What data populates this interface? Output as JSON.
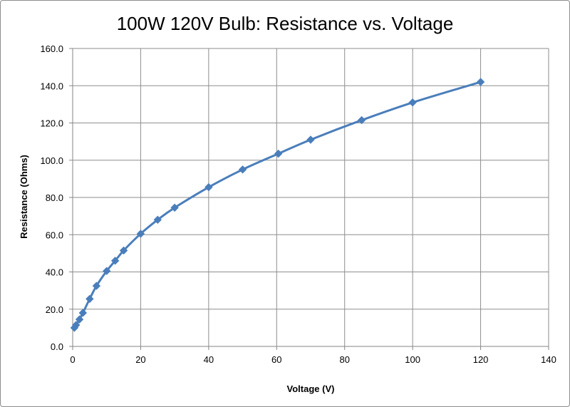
{
  "chart_data": {
    "type": "line",
    "title": "100W 120V Bulb: Resistance vs. Voltage",
    "xlabel": "Voltage (V)",
    "ylabel": "Resistance (Ohms)",
    "xlim": [
      0,
      140
    ],
    "ylim": [
      0,
      160
    ],
    "xticks": [
      0,
      20,
      40,
      60,
      80,
      100,
      120,
      140
    ],
    "xtick_labels": [
      "0",
      "20",
      "40",
      "60",
      "80",
      "100",
      "120",
      "140"
    ],
    "yticks": [
      0,
      20,
      40,
      60,
      80,
      100,
      120,
      140,
      160
    ],
    "ytick_labels": [
      "0.0",
      "20.0",
      "40.0",
      "60.0",
      "80.0",
      "100.0",
      "120.0",
      "140.0",
      "160.0"
    ],
    "grid": true,
    "series": [
      {
        "name": "Resistance",
        "color": "#4a7ebb",
        "marker": "diamond",
        "x": [
          0.5,
          1,
          2,
          3,
          5,
          7,
          10,
          12.5,
          15,
          20,
          25,
          30,
          40,
          50,
          60.5,
          70,
          85,
          100,
          120
        ],
        "y": [
          10.0,
          11.5,
          14.5,
          18.0,
          25.5,
          32.5,
          40.5,
          46.0,
          51.5,
          60.5,
          68.0,
          74.5,
          85.5,
          95.0,
          103.5,
          111.0,
          121.5,
          131.0,
          142.0
        ]
      }
    ]
  }
}
